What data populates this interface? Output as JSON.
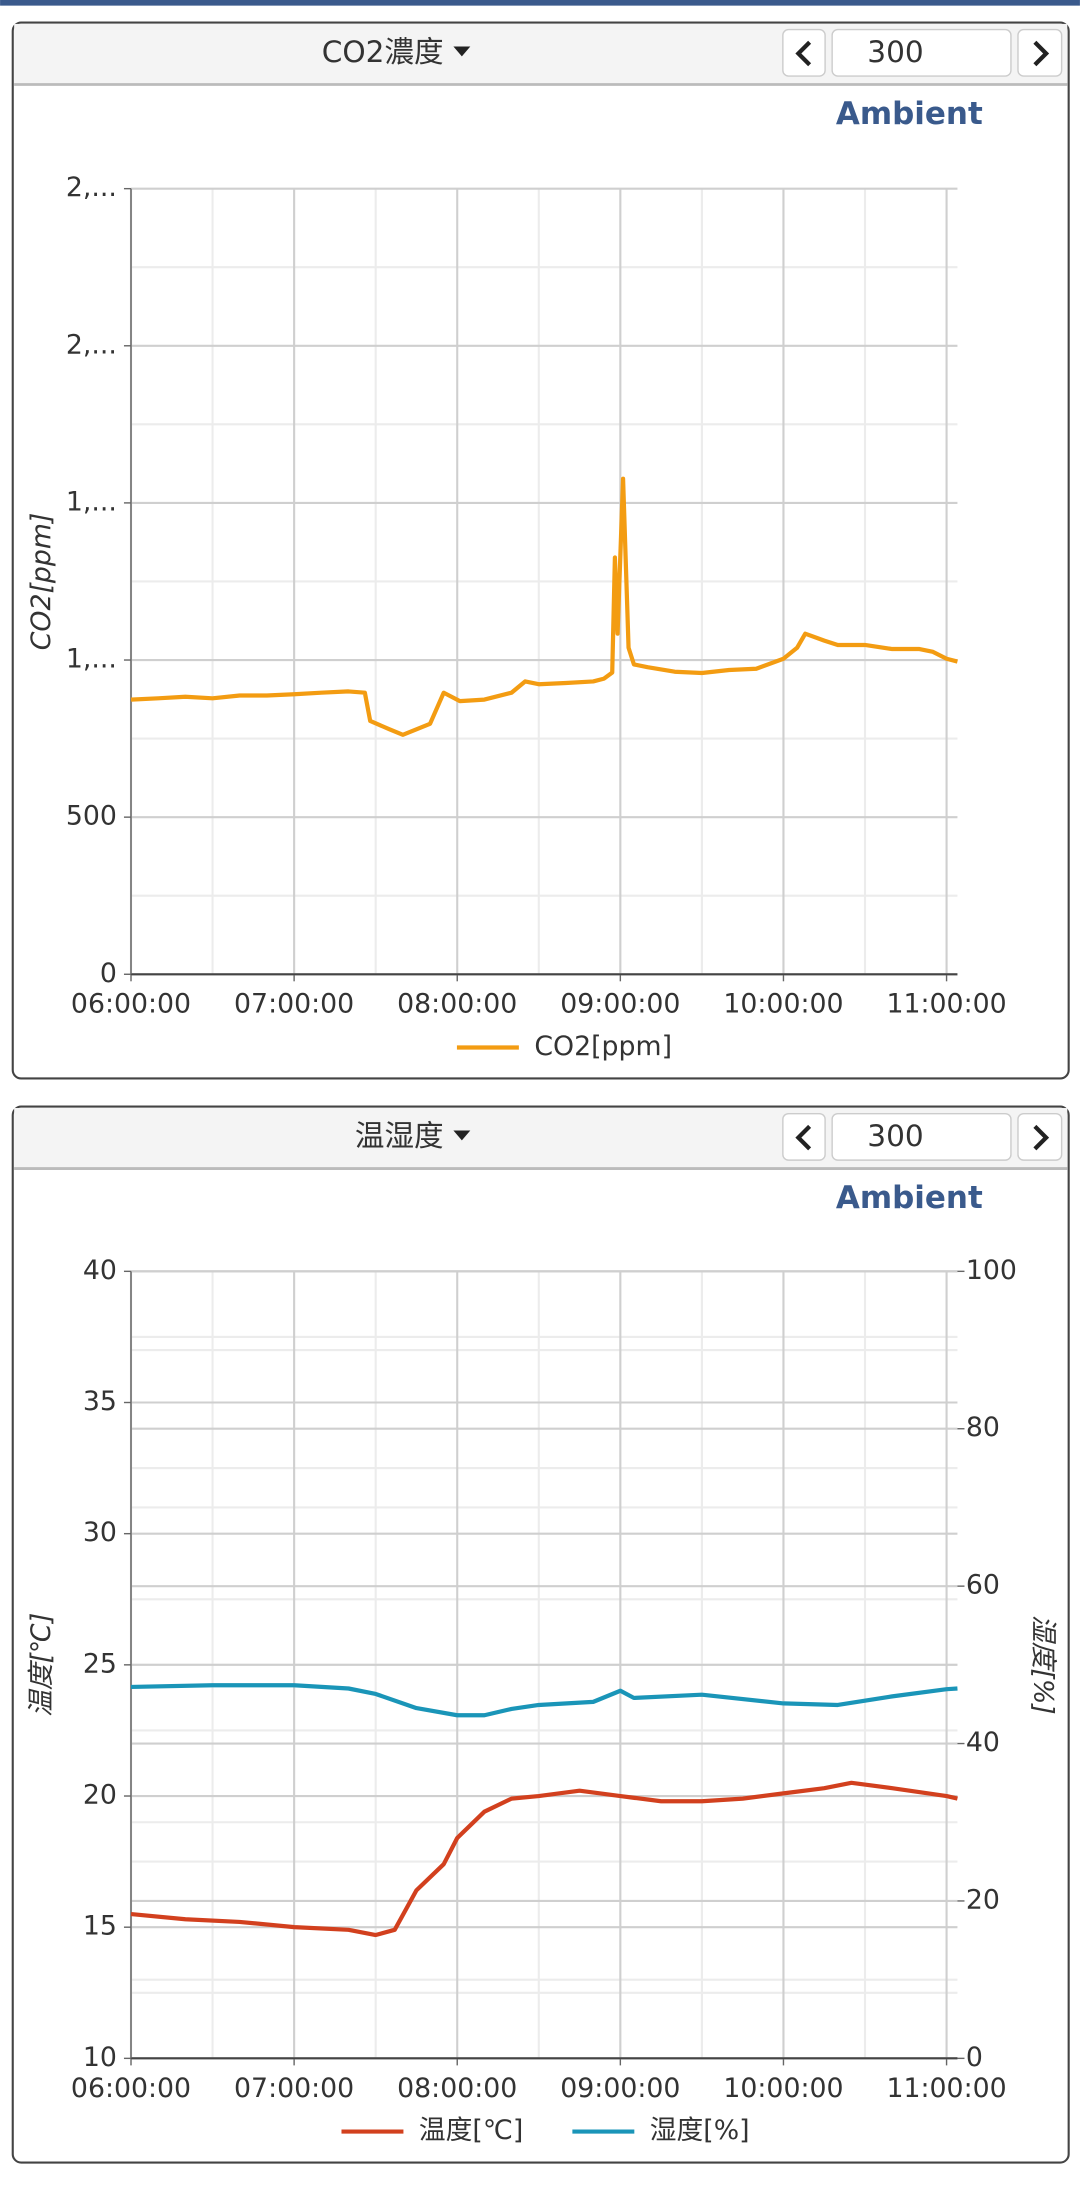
{
  "panels": [
    {
      "selector": "CO2濃度",
      "page_size": "300",
      "brand": "Ambient"
    },
    {
      "selector": "温湿度",
      "page_size": "300",
      "brand": "Ambient"
    }
  ],
  "chart_data": [
    {
      "type": "line",
      "ylabel": "CO2[ppm]",
      "xlim": [
        "06:00:00",
        "11:04:00"
      ],
      "xticks": [
        "06:00:00",
        "07:00:00",
        "08:00:00",
        "09:00:00",
        "10:00:00",
        "11:00:00"
      ],
      "ylim": [
        0,
        2500
      ],
      "yticks": [
        0,
        500,
        {
          "value": 1000,
          "label": "1,..."
        },
        {
          "value": 1500,
          "label": "1,..."
        },
        {
          "value": 2000,
          "label": "2,..."
        },
        {
          "value": 2500,
          "label": "2,..."
        }
      ],
      "grid": true,
      "series": [
        {
          "name": "CO2[ppm]",
          "color": "#f39c12",
          "x": [
            "06:00:00",
            "06:10:00",
            "06:20:00",
            "06:30:00",
            "06:40:00",
            "06:50:00",
            "07:00:00",
            "07:10:00",
            "07:20:00",
            "07:26:00",
            "07:28:00",
            "07:35:00",
            "07:40:00",
            "07:50:00",
            "07:55:00",
            "08:01:00",
            "08:10:00",
            "08:20:00",
            "08:25:00",
            "08:30:00",
            "08:40:00",
            "08:50:00",
            "08:54:00",
            "08:57:00",
            "08:58:00",
            "08:59:00",
            "09:01:00",
            "09:03:00",
            "09:05:00",
            "09:10:00",
            "09:20:00",
            "09:30:00",
            "09:40:00",
            "09:50:00",
            "10:00:00",
            "10:05:00",
            "10:08:00",
            "10:15:00",
            "10:20:00",
            "10:30:00",
            "10:40:00",
            "10:50:00",
            "10:55:00",
            "11:00:00",
            "11:04:00"
          ],
          "values": [
            874,
            878,
            883,
            878,
            887,
            887,
            891,
            896,
            900,
            896,
            806,
            780,
            762,
            797,
            896,
            869,
            874,
            896,
            932,
            923,
            927,
            932,
            941,
            960,
            1326,
            1084,
            1577,
            1039,
            986,
            977,
            963,
            959,
            968,
            972,
            1004,
            1039,
            1084,
            1062,
            1048,
            1048,
            1035,
            1035,
            1026,
            1004,
            995
          ]
        }
      ]
    },
    {
      "type": "line",
      "ylabel": "温度[℃]",
      "y2label": "湿度[%]",
      "xlim": [
        "06:00:00",
        "11:04:00"
      ],
      "xticks": [
        "06:00:00",
        "07:00:00",
        "08:00:00",
        "09:00:00",
        "10:00:00",
        "11:00:00"
      ],
      "ylim": [
        10,
        40
      ],
      "yticks": [
        10,
        15,
        20,
        25,
        30,
        35,
        40
      ],
      "y2lim": [
        0,
        100
      ],
      "y2ticks": [
        0,
        20,
        40,
        60,
        80,
        100
      ],
      "grid": true,
      "series": [
        {
          "name": "温度[℃]",
          "color": "#d2401e",
          "x": [
            "06:00:00",
            "06:20:00",
            "06:40:00",
            "07:00:00",
            "07:20:00",
            "07:30:00",
            "07:37:00",
            "07:45:00",
            "07:55:00",
            "08:00:00",
            "08:10:00",
            "08:20:00",
            "08:30:00",
            "08:45:00",
            "09:00:00",
            "09:15:00",
            "09:30:00",
            "09:45:00",
            "10:00:00",
            "10:15:00",
            "10:25:00",
            "10:40:00",
            "11:00:00",
            "11:04:00"
          ],
          "values": [
            15.5,
            15.3,
            15.2,
            15.0,
            14.9,
            14.7,
            14.9,
            16.4,
            17.4,
            18.4,
            19.4,
            19.9,
            20.0,
            20.2,
            20.0,
            19.8,
            19.8,
            19.9,
            20.1,
            20.3,
            20.5,
            20.3,
            20.0,
            19.9
          ]
        },
        {
          "name": "湿度[%]",
          "color": "#1a95b8",
          "axis": "y2",
          "x": [
            "06:00:00",
            "06:30:00",
            "07:00:00",
            "07:20:00",
            "07:30:00",
            "07:45:00",
            "08:00:00",
            "08:10:00",
            "08:20:00",
            "08:30:00",
            "08:50:00",
            "09:00:00",
            "09:05:00",
            "09:30:00",
            "10:00:00",
            "10:20:00",
            "10:40:00",
            "11:00:00",
            "11:04:00"
          ],
          "values": [
            47.2,
            47.4,
            47.4,
            47.0,
            46.3,
            44.5,
            43.6,
            43.6,
            44.4,
            44.9,
            45.3,
            46.7,
            45.8,
            46.2,
            45.1,
            44.9,
            46.0,
            46.9,
            47.0
          ]
        }
      ]
    }
  ]
}
